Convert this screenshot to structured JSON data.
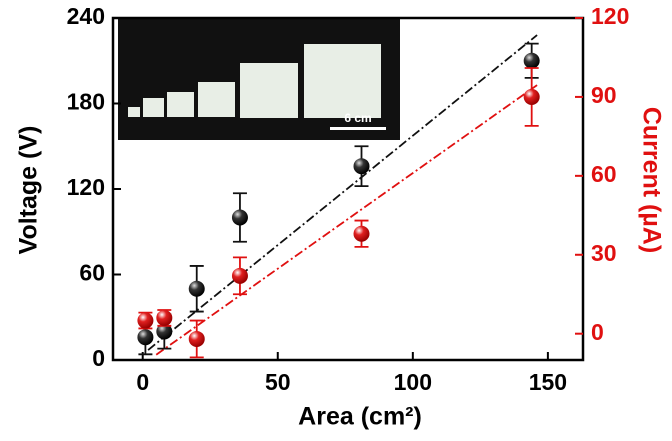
{
  "chart_data": {
    "type": "scatter",
    "x_label": "Area (cm²)",
    "y_label": "Voltage (V)",
    "y2_label": "Current (µA)",
    "inset_label": "6 cm",
    "x": [
      1,
      8,
      20,
      36,
      81,
      144
    ],
    "xlim": [
      -11,
      163
    ],
    "xticks": [
      0,
      50,
      100,
      150
    ],
    "ylim": [
      0,
      240
    ],
    "yticks": [
      0,
      60,
      120,
      180,
      240
    ],
    "y2lim": [
      -10,
      120
    ],
    "y2ticks": [
      0,
      30,
      60,
      90,
      120
    ],
    "y2_color": "#e01010",
    "series": [
      {
        "color": "#111111",
        "axis": "y",
        "values": [
          16,
          20,
          50,
          100,
          136,
          210
        ],
        "errors": [
          12,
          12,
          16,
          17,
          14,
          12
        ]
      },
      {
        "color": "#e01010",
        "axis": "y2",
        "values": [
          5,
          6,
          -2,
          22,
          38,
          90
        ],
        "errors": [
          3,
          3,
          7,
          7,
          5,
          11
        ]
      }
    ],
    "fits": [
      {
        "color": "#111111",
        "axis": "y",
        "x": [
          2,
          146
        ],
        "values": [
          7,
          228
        ]
      },
      {
        "color": "#e01010",
        "axis": "y2",
        "x": [
          5,
          146
        ],
        "values": [
          -8,
          94.5
        ]
      }
    ]
  }
}
